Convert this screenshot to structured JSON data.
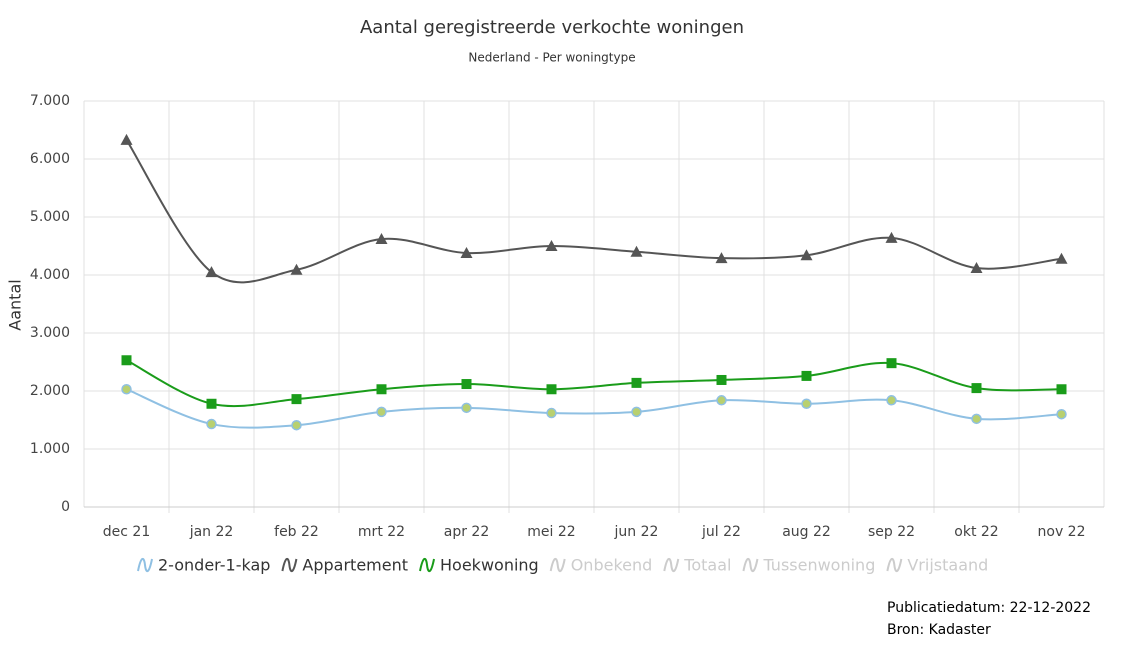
{
  "chart_data": {
    "type": "line",
    "title": "Aantal geregistreerde verkochte woningen",
    "subtitle": "Nederland - Per woningtype",
    "y_label": "Aantal",
    "categories": [
      "dec 21",
      "jan 22",
      "feb 22",
      "mrt 22",
      "apr 22",
      "mei 22",
      "jun 22",
      "jul 22",
      "aug 22",
      "sep 22",
      "okt 22",
      "nov 22"
    ],
    "series": [
      {
        "name": "2-onder-1-kap",
        "color": "#8fc0e3",
        "marker": "circle",
        "values": [
          2030,
          1430,
          1410,
          1640,
          1710,
          1620,
          1640,
          1840,
          1780,
          1840,
          1520,
          1600
        ]
      },
      {
        "name": "Appartement",
        "color": "#555555",
        "marker": "triangle",
        "values": [
          6330,
          4050,
          4090,
          4620,
          4380,
          4500,
          4400,
          4290,
          4340,
          4640,
          4120,
          4280
        ]
      },
      {
        "name": "Hoekwoning",
        "color": "#1a9c1a",
        "marker": "square",
        "values": [
          2530,
          1780,
          1860,
          2030,
          2120,
          2030,
          2140,
          2190,
          2260,
          2480,
          2050,
          2030
        ]
      }
    ],
    "hidden_series": [
      "Onbekend",
      "Totaal",
      "Tussenwoning",
      "Vrijstaand"
    ],
    "ylim": [
      0,
      7000
    ],
    "yticks": [
      0,
      {
        "value": 1000,
        "label": "1.000"
      },
      {
        "value": 2000,
        "label": "2.000"
      },
      {
        "value": 3000,
        "label": "3.000"
      },
      {
        "value": 4000,
        "label": "4.000"
      },
      {
        "value": 5000,
        "label": "5.000"
      },
      {
        "value": 6000,
        "label": "6.000"
      },
      {
        "value": 7000,
        "label": "7.000"
      }
    ],
    "grid": true,
    "smooth": true
  },
  "footer": {
    "date": "Publicatiedatum: 22-12-2022",
    "source": "Bron: Kadaster"
  }
}
